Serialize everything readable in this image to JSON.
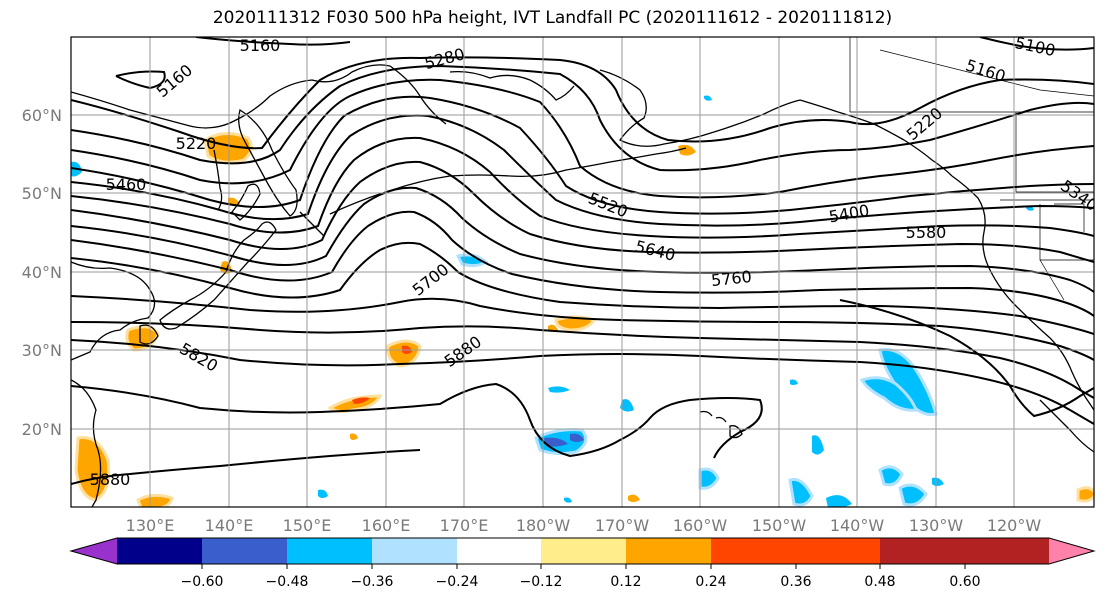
{
  "title": "2020111312 F030 500 hPa height, IVT Landfall PC (2020111612 - 2020111812)",
  "lat_labels": [
    "60°N",
    "50°N",
    "40°N",
    "30°N",
    "20°N"
  ],
  "lon_labels": [
    "130°E",
    "140°E",
    "150°E",
    "160°E",
    "170°E",
    "180°W",
    "170°W",
    "160°W",
    "150°W",
    "140°W",
    "130°W",
    "120°W"
  ],
  "contour_labels": [
    "5160",
    "5160",
    "5280",
    "5100",
    "5160",
    "5220",
    "5220",
    "5460",
    "5520",
    "5400",
    "5340",
    "5640",
    "5580",
    "5700",
    "5760",
    "5820",
    "5880",
    "5880"
  ],
  "colorbar": {
    "ticks": [
      "−0.60",
      "−0.48",
      "−0.36",
      "−0.24",
      "−0.12",
      "0.12",
      "0.24",
      "0.36",
      "0.48",
      "0.60"
    ],
    "colors": [
      "#9932cc",
      "#00008b",
      "#3a5fcd",
      "#00bfff",
      "#b0e2ff",
      "#ffffff",
      "#ffec8b",
      "#ffa500",
      "#ff4500",
      "#b22222",
      "#ff82ab"
    ]
  },
  "shading_colors": {
    "positive_light": "#ffa500",
    "positive_strong": "#ff4500",
    "negative_light": "#00bfff",
    "negative_mid": "#3a5fcd",
    "negative_pale": "#b0e2ff"
  }
}
